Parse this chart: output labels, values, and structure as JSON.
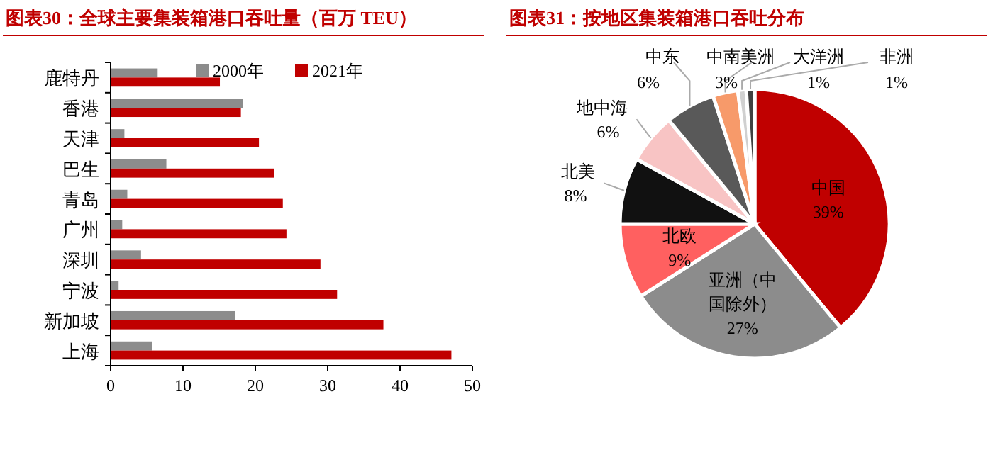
{
  "chart_data": [
    {
      "type": "bar",
      "orientation": "horizontal",
      "title": "图表30：全球主要集装箱港口吞吐量（百万 TEU）",
      "categories": [
        "鹿特丹",
        "香港",
        "天津",
        "巴生",
        "青岛",
        "广州",
        "深圳",
        "宁波",
        "新加坡",
        "上海"
      ],
      "series": [
        {
          "name": "2000年",
          "color": "#8c8c8c",
          "values": [
            6.5,
            18.3,
            1.9,
            7.7,
            2.3,
            1.6,
            4.2,
            1.1,
            17.2,
            5.7
          ]
        },
        {
          "name": "2021年",
          "color": "#c00000",
          "values": [
            15.1,
            18.0,
            20.5,
            22.6,
            23.8,
            24.3,
            29.0,
            31.3,
            37.7,
            47.1
          ]
        }
      ],
      "xlim": [
        0,
        50
      ],
      "xticks": [
        0,
        10,
        20,
        30,
        40,
        50
      ],
      "grid": false,
      "legend": "top"
    },
    {
      "type": "pie",
      "title": "图表31：按地区集装箱港口吞吐分布",
      "categories": [
        "中国",
        "亚洲（中国除外）",
        "北欧",
        "北美",
        "地中海",
        "中东",
        "中南美洲",
        "大洋洲",
        "非洲"
      ],
      "values": [
        39,
        27,
        9,
        8,
        6,
        6,
        3,
        1,
        1
      ],
      "value_labels": [
        "39%",
        "27%",
        "9%",
        "8%",
        "6%",
        "6%",
        "3%",
        "1%",
        "1%"
      ],
      "colors": [
        "#c00000",
        "#8c8c8c",
        "#ff6060",
        "#111111",
        "#f8c4c4",
        "#595959",
        "#f79a6a",
        "#d0d0d0",
        "#404040"
      ],
      "legend": false
    }
  ]
}
